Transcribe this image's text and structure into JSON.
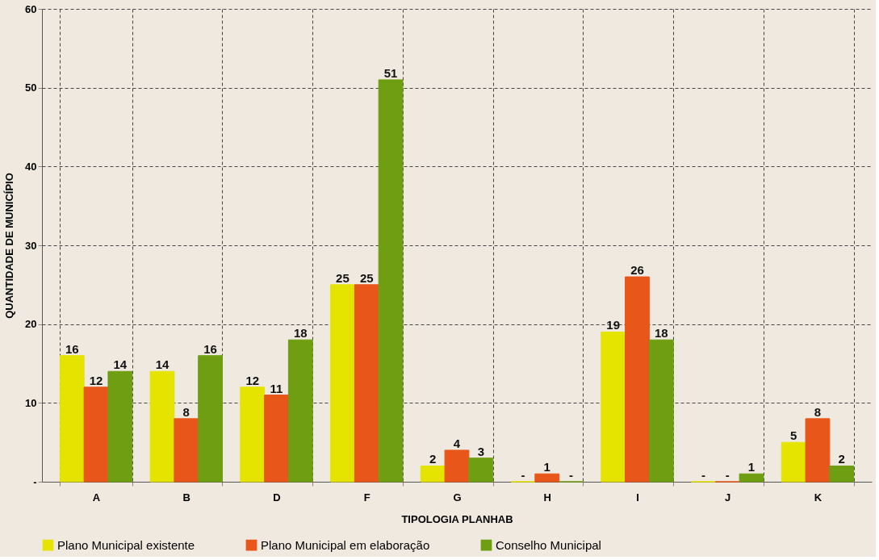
{
  "chart_data": {
    "type": "bar",
    "xlabel": "TIPOLOGIA PLANHAB",
    "ylabel": "QUANTIDADE DE MUNICÍPIO",
    "categories": [
      "A",
      "B",
      "D",
      "F",
      "G",
      "H",
      "I",
      "J",
      "K"
    ],
    "series": [
      {
        "name": "Plano Municipal existente",
        "color": "#e4e400",
        "values": [
          16,
          14,
          12,
          25,
          2,
          0,
          19,
          0,
          5
        ],
        "value_labels": [
          "16",
          "14",
          "12",
          "25",
          "2",
          "-",
          "19",
          "-",
          "5"
        ]
      },
      {
        "name": "Plano Municipal em elaboração",
        "color": "#e8561a",
        "values": [
          12,
          8,
          11,
          25,
          4,
          1,
          26,
          0,
          8
        ],
        "value_labels": [
          "12",
          "8",
          "11",
          "25",
          "4",
          "1",
          "26",
          "-",
          "8"
        ]
      },
      {
        "name": "Conselho Municipal",
        "color": "#6f9e12",
        "values": [
          14,
          16,
          18,
          51,
          3,
          0,
          18,
          1,
          2
        ],
        "value_labels": [
          "14",
          "16",
          "18",
          "51",
          "3",
          "-",
          "18",
          "1",
          "2"
        ]
      }
    ],
    "ylim": [
      0,
      60
    ],
    "yticks": [
      {
        "value": 0,
        "label": "-"
      },
      10,
      20,
      30,
      40,
      50,
      60
    ],
    "grid": true,
    "legend": "bottom"
  }
}
